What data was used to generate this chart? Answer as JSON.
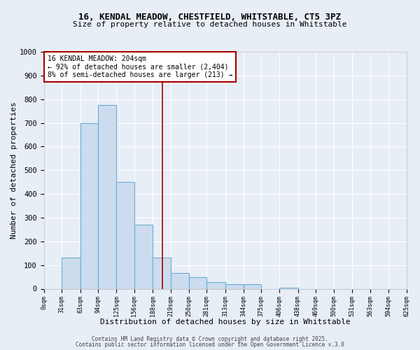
{
  "title_line1": "16, KENDAL MEADOW, CHESTFIELD, WHITSTABLE, CT5 3PZ",
  "title_line2": "Size of property relative to detached houses in Whitstable",
  "xlabel": "Distribution of detached houses by size in Whitstable",
  "ylabel": "Number of detached properties",
  "bin_edges": [
    0,
    31,
    63,
    94,
    125,
    156,
    188,
    219,
    250,
    281,
    313,
    344,
    375,
    406,
    438,
    469,
    500,
    531,
    563,
    594,
    625
  ],
  "bar_heights": [
    0,
    130,
    700,
    775,
    450,
    270,
    130,
    65,
    50,
    28,
    18,
    18,
    0,
    5,
    0,
    0,
    0,
    0,
    0,
    0
  ],
  "bar_color": "#ccdcee",
  "bar_edge_color": "#6aaed6",
  "vline_x": 204,
  "vline_color": "#aa0000",
  "annotation_text": "16 KENDAL MEADOW: 204sqm\n← 92% of detached houses are smaller (2,404)\n8% of semi-detached houses are larger (213) →",
  "annotation_box_color": "#ffffff",
  "annotation_box_edge_color": "#aa0000",
  "background_color": "#e8eef6",
  "grid_color": "#ffffff",
  "ylim": [
    0,
    1000
  ],
  "yticks": [
    0,
    100,
    200,
    300,
    400,
    500,
    600,
    700,
    800,
    900,
    1000
  ],
  "footnote1": "Contains HM Land Registry data © Crown copyright and database right 2025.",
  "footnote2": "Contains public sector information licensed under the Open Government Licence v.3.0"
}
